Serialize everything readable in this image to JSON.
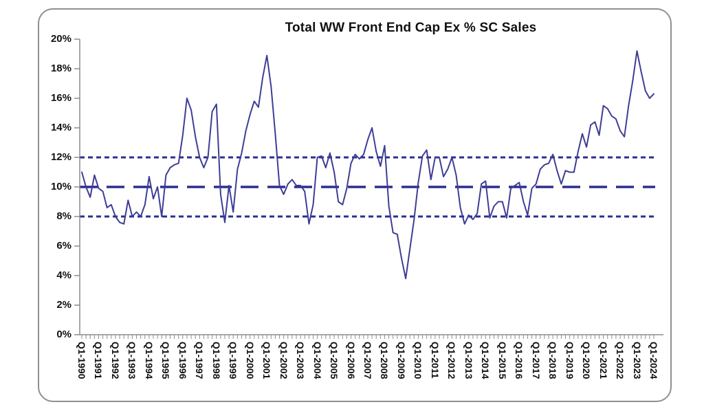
{
  "title": "Total WW Front End Cap Ex % SC Sales",
  "y_axis": {
    "labels": [
      "0%",
      "2%",
      "4%",
      "6%",
      "8%",
      "10%",
      "12%",
      "14%",
      "16%",
      "18%",
      "20%"
    ],
    "min": 0,
    "max": 20,
    "step": 2
  },
  "x_axis": {
    "labels": [
      "Q1-1990",
      "Q1-1991",
      "Q1-1992",
      "Q1-1993",
      "Q1-1994",
      "Q1-1995",
      "Q1-1996",
      "Q1-1997",
      "Q1-1998",
      "Q1-1999",
      "Q1-2000",
      "Q1-2001",
      "Q1-2002",
      "Q1-2003",
      "Q1-2004",
      "Q1-2005",
      "Q1-2006",
      "Q1-2007",
      "Q1-2008",
      "Q1-2009",
      "Q1-2010",
      "Q1-2011",
      "Q1-2012",
      "Q1-2013",
      "Q1-2014",
      "Q1-2015",
      "Q1-2016",
      "Q1-2017",
      "Q1-2018",
      "Q1-2019",
      "Q1-2020",
      "Q1-2021",
      "Q1-2022",
      "Q1-2023",
      "Q1-2024"
    ],
    "tick_frequency": "quarterly",
    "label_frequency": "yearly"
  },
  "chart_data": {
    "type": "line",
    "title": "Total WW Front End Cap Ex % SC Sales",
    "xlabel": "",
    "ylabel": "",
    "x_start": "Q1-1990",
    "x_end": "Q1-2024",
    "frequency": "quarterly",
    "ylim": [
      0,
      20
    ],
    "grid": false,
    "legend": false,
    "values": [
      11.0,
      10.0,
      9.3,
      10.8,
      9.9,
      9.7,
      8.6,
      8.8,
      8.0,
      7.6,
      7.5,
      9.1,
      8.0,
      8.3,
      8.0,
      8.8,
      10.7,
      9.2,
      10.0,
      8.0,
      10.8,
      11.3,
      11.5,
      11.6,
      13.5,
      16.0,
      15.2,
      13.4,
      12.0,
      11.3,
      12.0,
      15.1,
      15.6,
      9.5,
      7.6,
      10.1,
      8.3,
      11.2,
      12.3,
      13.8,
      14.9,
      15.8,
      15.4,
      17.4,
      18.9,
      16.8,
      13.6,
      10.1,
      9.5,
      10.2,
      10.5,
      10.1,
      10.1,
      9.7,
      7.5,
      8.8,
      12.0,
      12.1,
      11.3,
      12.3,
      11.0,
      9.0,
      8.8,
      9.9,
      11.6,
      12.2,
      11.9,
      12.2,
      13.2,
      14.0,
      12.4,
      11.4,
      12.8,
      8.7,
      6.9,
      6.8,
      5.2,
      3.8,
      5.8,
      7.8,
      10.3,
      12.1,
      12.5,
      10.5,
      12.0,
      12.0,
      10.7,
      11.2,
      12.0,
      10.8,
      8.6,
      7.5,
      8.1,
      7.8,
      8.2,
      10.2,
      10.4,
      7.9,
      8.7,
      9.0,
      9.0,
      7.9,
      9.9,
      10.1,
      10.3,
      9.0,
      8.1,
      9.9,
      10.2,
      11.2,
      11.5,
      11.6,
      12.2,
      11.1,
      10.2,
      11.1,
      11.0,
      11.0,
      12.4,
      13.6,
      12.7,
      14.2,
      14.4,
      13.5,
      15.5,
      15.3,
      14.8,
      14.6,
      13.8,
      13.4,
      15.5,
      17.2,
      19.2,
      17.8,
      16.5,
      16.0,
      16.3
    ],
    "reference_lines": [
      {
        "value": 12,
        "style": "short-dash"
      },
      {
        "value": 10,
        "style": "long-dash"
      },
      {
        "value": 8,
        "style": "short-dash"
      }
    ],
    "colors": {
      "line": "#3d3d96",
      "reference": "#2d2d8f",
      "axis": "#8c8c8c",
      "text": "#111111",
      "card_border": "#8f8f8f",
      "background": "#ffffff"
    }
  }
}
